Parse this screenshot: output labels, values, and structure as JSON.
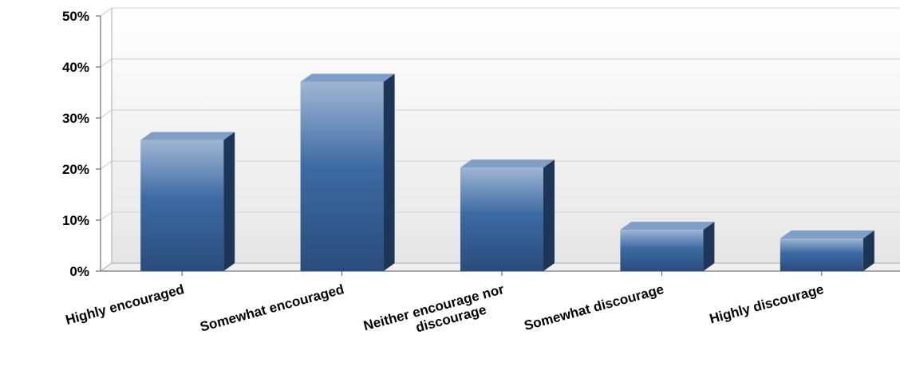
{
  "chart_data": {
    "type": "bar",
    "title": "",
    "xlabel": "",
    "ylabel": "",
    "ylim": [
      0,
      50
    ],
    "yticks": [
      "0%",
      "10%",
      "20%",
      "30%",
      "40%",
      "50%"
    ],
    "grid": true,
    "categories": [
      [
        "Highly encouraged"
      ],
      [
        "Somewhat encouraged"
      ],
      [
        "Neither encourage nor",
        "discourage"
      ],
      [
        "Somewhat discourage"
      ],
      [
        "Highly discourage"
      ]
    ],
    "values": [
      25.7,
      37.1,
      20.3,
      8.1,
      6.4
    ],
    "colors": {
      "bar_top": "#9fb6d3",
      "bar_mid": "#3d6aa3",
      "bar_bottom": "#2a4c7c",
      "bar_side": "#1d3557",
      "bar_cap": "#7f9ec8"
    }
  }
}
